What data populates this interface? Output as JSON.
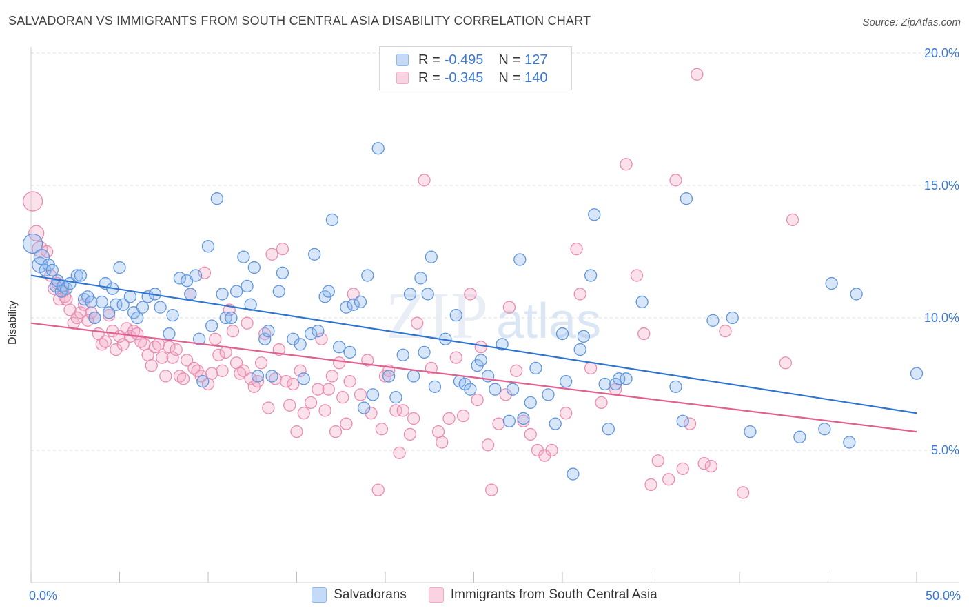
{
  "title": "SALVADORAN VS IMMIGRANTS FROM SOUTH CENTRAL ASIA DISABILITY CORRELATION CHART",
  "source": "Source: ZipAtlas.com",
  "watermark": {
    "zip": "ZIP",
    "atlas": "atlas"
  },
  "legend": {
    "r_label": "R =",
    "n_label": "N =",
    "series": [
      {
        "name": "Salvadorans",
        "r": "-0.495",
        "n": "127",
        "color": "#8fb8ee",
        "line": "#2f74d0"
      },
      {
        "name": "Immigrants from South Central Asia",
        "r": "-0.345",
        "n": "140",
        "color": "#f3a8c4",
        "line": "#e0608f"
      }
    ]
  },
  "chart_data": {
    "type": "scatter",
    "title": "SALVADORAN VS IMMIGRANTS FROM SOUTH CENTRAL ASIA DISABILITY CORRELATION CHART",
    "xlabel": "",
    "ylabel": "Disability",
    "xlim": [
      0,
      50
    ],
    "ylim": [
      0,
      20
    ],
    "x_tick_labels": [
      "0.0%",
      "50.0%"
    ],
    "y_ticks": [
      5,
      10,
      15,
      20
    ],
    "y_tick_labels": [
      "5.0%",
      "10.0%",
      "15.0%",
      "20.0%"
    ],
    "grid": true,
    "series": [
      {
        "name": "Salvadorans",
        "r": -0.495,
        "n": 127,
        "trend": {
          "x": [
            0,
            50
          ],
          "y": [
            11.6,
            6.4
          ]
        },
        "points": [
          [
            0.1,
            12.8
          ],
          [
            0.5,
            12.0
          ],
          [
            0.6,
            12.3
          ],
          [
            0.8,
            11.8
          ],
          [
            1.0,
            12.0
          ],
          [
            1.2,
            11.8
          ],
          [
            1.4,
            11.2
          ],
          [
            1.5,
            11.4
          ],
          [
            1.7,
            11.0
          ],
          [
            1.8,
            11.2
          ],
          [
            2.0,
            11.1
          ],
          [
            2.2,
            11.3
          ],
          [
            2.6,
            11.6
          ],
          [
            2.8,
            11.6
          ],
          [
            3.0,
            10.7
          ],
          [
            3.2,
            10.8
          ],
          [
            3.4,
            10.6
          ],
          [
            3.6,
            10.0
          ],
          [
            4.0,
            10.6
          ],
          [
            4.2,
            11.3
          ],
          [
            4.4,
            10.2
          ],
          [
            4.6,
            11.1
          ],
          [
            4.8,
            10.5
          ],
          [
            5.0,
            11.9
          ],
          [
            5.2,
            10.5
          ],
          [
            5.6,
            10.8
          ],
          [
            5.8,
            10.2
          ],
          [
            6.0,
            10.0
          ],
          [
            6.3,
            10.4
          ],
          [
            6.6,
            10.8
          ],
          [
            7.0,
            10.9
          ],
          [
            7.3,
            10.4
          ],
          [
            7.8,
            9.4
          ],
          [
            8.0,
            10.1
          ],
          [
            8.4,
            11.5
          ],
          [
            8.8,
            11.4
          ],
          [
            9.0,
            10.9
          ],
          [
            9.3,
            11.6
          ],
          [
            9.5,
            9.2
          ],
          [
            9.7,
            7.6
          ],
          [
            10.0,
            12.7
          ],
          [
            10.2,
            9.7
          ],
          [
            10.5,
            14.5
          ],
          [
            10.8,
            10.9
          ],
          [
            11.0,
            10.0
          ],
          [
            11.3,
            10.0
          ],
          [
            11.6,
            11.0
          ],
          [
            12.0,
            12.3
          ],
          [
            12.2,
            11.2
          ],
          [
            12.4,
            10.5
          ],
          [
            12.6,
            11.9
          ],
          [
            12.8,
            7.8
          ],
          [
            13.2,
            9.2
          ],
          [
            13.4,
            9.5
          ],
          [
            13.6,
            7.8
          ],
          [
            14.0,
            11.0
          ],
          [
            14.2,
            11.7
          ],
          [
            14.8,
            9.2
          ],
          [
            15.2,
            9.0
          ],
          [
            15.4,
            7.7
          ],
          [
            15.8,
            9.4
          ],
          [
            16.0,
            12.4
          ],
          [
            16.2,
            9.5
          ],
          [
            16.6,
            10.8
          ],
          [
            16.8,
            11.0
          ],
          [
            17.0,
            13.7
          ],
          [
            17.4,
            8.9
          ],
          [
            17.8,
            10.4
          ],
          [
            18.0,
            8.7
          ],
          [
            18.2,
            10.5
          ],
          [
            18.6,
            10.6
          ],
          [
            18.8,
            6.6
          ],
          [
            19.0,
            11.6
          ],
          [
            19.3,
            7.1
          ],
          [
            19.6,
            16.4
          ],
          [
            20.2,
            7.8
          ],
          [
            20.6,
            7.0
          ],
          [
            21.0,
            8.6
          ],
          [
            21.4,
            10.9
          ],
          [
            21.6,
            7.8
          ],
          [
            22.0,
            11.5
          ],
          [
            22.2,
            8.7
          ],
          [
            22.4,
            10.9
          ],
          [
            22.6,
            12.3
          ],
          [
            22.8,
            7.4
          ],
          [
            23.4,
            9.2
          ],
          [
            24.0,
            10.1
          ],
          [
            24.2,
            7.6
          ],
          [
            24.5,
            7.5
          ],
          [
            24.8,
            7.3
          ],
          [
            25.2,
            8.2
          ],
          [
            25.4,
            8.4
          ],
          [
            25.8,
            7.8
          ],
          [
            26.2,
            7.3
          ],
          [
            26.6,
            9.0
          ],
          [
            27.0,
            6.1
          ],
          [
            27.2,
            7.3
          ],
          [
            27.6,
            12.2
          ],
          [
            27.8,
            6.2
          ],
          [
            28.2,
            6.8
          ],
          [
            28.5,
            8.1
          ],
          [
            29.2,
            7.1
          ],
          [
            29.6,
            6.0
          ],
          [
            30.0,
            9.4
          ],
          [
            30.2,
            7.6
          ],
          [
            30.6,
            4.1
          ],
          [
            31.0,
            8.8
          ],
          [
            31.2,
            9.3
          ],
          [
            31.6,
            11.6
          ],
          [
            31.8,
            13.9
          ],
          [
            32.4,
            7.5
          ],
          [
            32.6,
            5.8
          ],
          [
            33.0,
            7.5
          ],
          [
            33.2,
            7.7
          ],
          [
            33.6,
            7.7
          ],
          [
            34.5,
            10.6
          ],
          [
            36.4,
            7.4
          ],
          [
            36.8,
            6.1
          ],
          [
            37.0,
            14.5
          ],
          [
            38.5,
            9.9
          ],
          [
            39.6,
            10.0
          ],
          [
            40.6,
            5.7
          ],
          [
            43.4,
            5.5
          ],
          [
            44.8,
            5.8
          ],
          [
            45.2,
            11.3
          ],
          [
            46.2,
            5.3
          ],
          [
            46.6,
            10.9
          ],
          [
            50.0,
            7.9
          ]
        ]
      },
      {
        "name": "Immigrants from South Central Asia",
        "r": -0.345,
        "n": 140,
        "trend": {
          "x": [
            0,
            50
          ],
          "y": [
            9.8,
            5.7
          ]
        },
        "points": [
          [
            0.1,
            14.4
          ],
          [
            0.3,
            13.2
          ],
          [
            0.5,
            12.6
          ],
          [
            0.9,
            12.5
          ],
          [
            1.1,
            11.6
          ],
          [
            1.3,
            11.1
          ],
          [
            1.5,
            11.3
          ],
          [
            1.6,
            10.7
          ],
          [
            1.8,
            11.0
          ],
          [
            1.9,
            10.8
          ],
          [
            2.0,
            10.7
          ],
          [
            2.2,
            10.3
          ],
          [
            2.4,
            9.8
          ],
          [
            2.6,
            10.0
          ],
          [
            2.8,
            10.2
          ],
          [
            3.0,
            10.5
          ],
          [
            3.2,
            9.9
          ],
          [
            3.4,
            10.2
          ],
          [
            3.6,
            10.0
          ],
          [
            3.8,
            9.4
          ],
          [
            4.0,
            9.0
          ],
          [
            4.2,
            9.1
          ],
          [
            4.4,
            10.1
          ],
          [
            4.6,
            9.5
          ],
          [
            4.8,
            8.8
          ],
          [
            5.0,
            9.3
          ],
          [
            5.2,
            9.0
          ],
          [
            5.4,
            9.6
          ],
          [
            5.6,
            9.3
          ],
          [
            5.8,
            9.5
          ],
          [
            6.0,
            9.4
          ],
          [
            6.2,
            9.1
          ],
          [
            6.4,
            9.0
          ],
          [
            6.6,
            8.6
          ],
          [
            6.8,
            8.2
          ],
          [
            7.0,
            8.9
          ],
          [
            7.2,
            9.0
          ],
          [
            7.4,
            8.5
          ],
          [
            7.6,
            7.8
          ],
          [
            7.8,
            8.9
          ],
          [
            8.0,
            8.5
          ],
          [
            8.2,
            8.8
          ],
          [
            8.4,
            7.8
          ],
          [
            8.6,
            7.7
          ],
          [
            8.8,
            8.4
          ],
          [
            9.0,
            10.9
          ],
          [
            9.2,
            8.1
          ],
          [
            9.4,
            8.0
          ],
          [
            9.6,
            7.8
          ],
          [
            9.8,
            11.7
          ],
          [
            10.0,
            7.5
          ],
          [
            10.2,
            7.9
          ],
          [
            10.4,
            9.2
          ],
          [
            10.6,
            8.6
          ],
          [
            10.8,
            8.0
          ],
          [
            11.0,
            8.7
          ],
          [
            11.2,
            10.3
          ],
          [
            11.4,
            9.5
          ],
          [
            11.6,
            8.3
          ],
          [
            11.8,
            7.9
          ],
          [
            12.0,
            8.0
          ],
          [
            12.2,
            9.8
          ],
          [
            12.4,
            7.7
          ],
          [
            12.6,
            7.4
          ],
          [
            12.8,
            7.6
          ],
          [
            13.0,
            8.3
          ],
          [
            13.2,
            9.4
          ],
          [
            13.4,
            6.6
          ],
          [
            13.6,
            12.4
          ],
          [
            13.8,
            7.7
          ],
          [
            14.0,
            8.8
          ],
          [
            14.2,
            12.6
          ],
          [
            14.4,
            7.6
          ],
          [
            14.6,
            6.7
          ],
          [
            14.8,
            7.5
          ],
          [
            15.0,
            5.7
          ],
          [
            15.2,
            8.0
          ],
          [
            15.4,
            6.4
          ],
          [
            15.8,
            6.8
          ],
          [
            16.2,
            7.3
          ],
          [
            16.4,
            9.2
          ],
          [
            16.6,
            6.5
          ],
          [
            16.8,
            7.3
          ],
          [
            17.0,
            7.8
          ],
          [
            17.2,
            5.7
          ],
          [
            17.4,
            8.3
          ],
          [
            17.6,
            7.0
          ],
          [
            17.8,
            6.0
          ],
          [
            18.0,
            7.6
          ],
          [
            18.2,
            10.9
          ],
          [
            18.6,
            7.1
          ],
          [
            19.0,
            8.4
          ],
          [
            19.2,
            6.4
          ],
          [
            19.6,
            3.5
          ],
          [
            19.8,
            5.8
          ],
          [
            20.0,
            7.8
          ],
          [
            20.2,
            8.0
          ],
          [
            20.6,
            6.5
          ],
          [
            20.8,
            4.9
          ],
          [
            21.0,
            6.5
          ],
          [
            21.4,
            5.6
          ],
          [
            21.6,
            6.2
          ],
          [
            21.8,
            9.8
          ],
          [
            22.2,
            15.2
          ],
          [
            22.6,
            8.1
          ],
          [
            23.0,
            5.7
          ],
          [
            23.2,
            5.3
          ],
          [
            23.6,
            6.2
          ],
          [
            24.0,
            8.5
          ],
          [
            24.4,
            6.3
          ],
          [
            24.8,
            10.9
          ],
          [
            25.2,
            6.9
          ],
          [
            25.4,
            8.9
          ],
          [
            25.8,
            5.2
          ],
          [
            26.0,
            3.5
          ],
          [
            26.4,
            6.0
          ],
          [
            26.8,
            7.1
          ],
          [
            27.0,
            10.4
          ],
          [
            27.4,
            8.0
          ],
          [
            27.8,
            6.1
          ],
          [
            28.2,
            5.6
          ],
          [
            28.6,
            5.0
          ],
          [
            29.0,
            4.8
          ],
          [
            29.4,
            5.0
          ],
          [
            30.2,
            6.4
          ],
          [
            30.8,
            12.6
          ],
          [
            31.0,
            10.9
          ],
          [
            31.6,
            8.1
          ],
          [
            32.2,
            6.8
          ],
          [
            33.0,
            7.3
          ],
          [
            33.6,
            15.8
          ],
          [
            34.2,
            11.6
          ],
          [
            34.6,
            9.4
          ],
          [
            35.0,
            3.7
          ],
          [
            35.4,
            4.6
          ],
          [
            36.0,
            3.9
          ],
          [
            36.4,
            15.2
          ],
          [
            36.8,
            4.3
          ],
          [
            37.2,
            6.0
          ],
          [
            37.6,
            19.2
          ],
          [
            38.0,
            4.5
          ],
          [
            38.4,
            4.4
          ],
          [
            39.2,
            9.5
          ],
          [
            40.2,
            3.4
          ],
          [
            42.6,
            8.3
          ],
          [
            43.0,
            13.7
          ]
        ]
      }
    ]
  }
}
